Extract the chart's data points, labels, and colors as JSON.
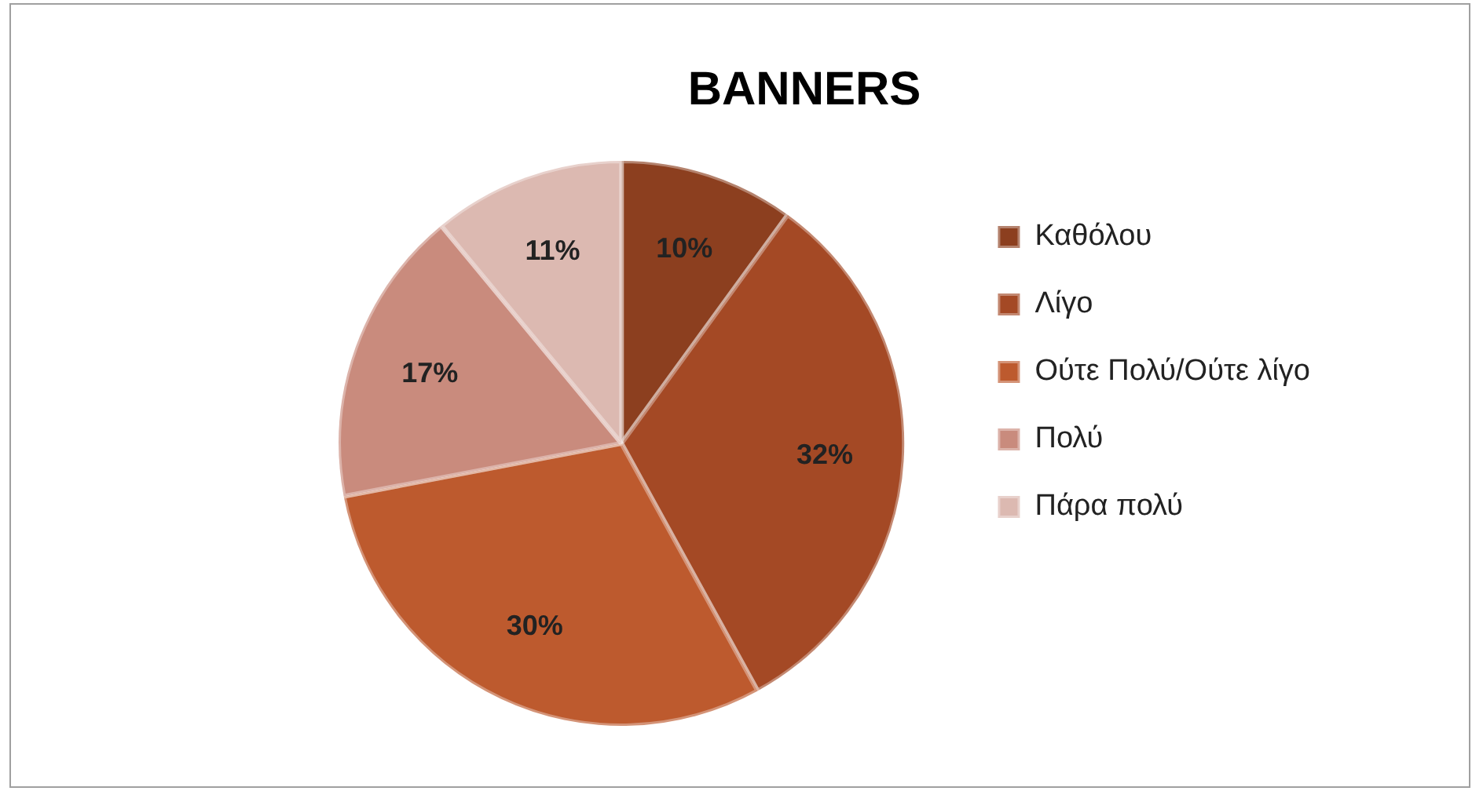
{
  "chart_data": {
    "type": "pie",
    "title": "BANNERS",
    "categories": [
      "Καθόλου",
      "Λίγο",
      "Ούτε Πολύ/Ούτε λίγο",
      "Πολύ",
      "Πάρα πολύ"
    ],
    "values": [
      10,
      32,
      30,
      17,
      11
    ],
    "colors": [
      "#8c3f1f",
      "#a44925",
      "#bd5a2e",
      "#c98b7d",
      "#dcb9b1"
    ],
    "value_labels": [
      "10%",
      "32%",
      "30%",
      "17%",
      "11%"
    ],
    "legend": "right"
  }
}
